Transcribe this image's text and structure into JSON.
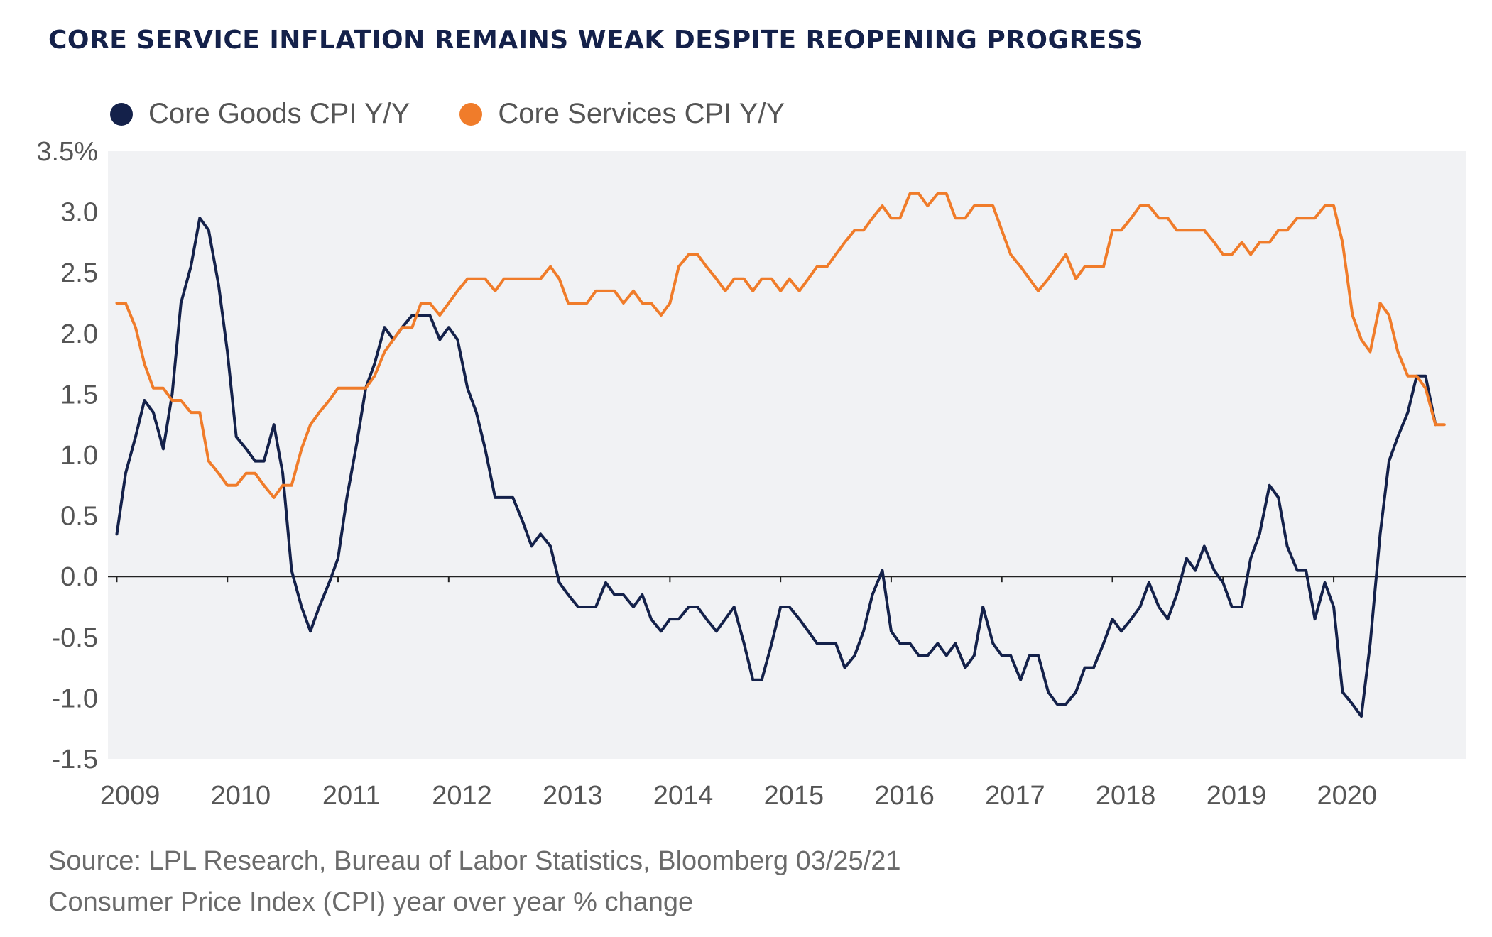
{
  "title": "CORE SERVICE INFLATION REMAINS WEAK DESPITE REOPENING PROGRESS",
  "footer": {
    "source": "Source: LPL Research, Bureau of Labor Statistics, Bloomberg 03/25/21",
    "note": "Consumer Price Index (CPI) year over year % change"
  },
  "colors": {
    "goods": "#14214a",
    "services": "#f07c2a",
    "plot_bg": "#f1f2f4",
    "zero_line": "#222222"
  },
  "chart_data": {
    "type": "line",
    "title": "CORE SERVICE INFLATION REMAINS WEAK DESPITE REOPENING PROGRESS",
    "xlabel": "",
    "ylabel": "",
    "ylim": [
      -1.5,
      3.5
    ],
    "y_ticks": [
      "3.5%",
      "3.0",
      "2.5",
      "2.0",
      "1.5",
      "1.0",
      "0.5",
      "0.0",
      "-0.5",
      "-1.0",
      "-1.5"
    ],
    "y_tick_values": [
      3.5,
      3.0,
      2.5,
      2.0,
      1.5,
      1.0,
      0.5,
      0.0,
      -0.5,
      -1.0,
      -1.5
    ],
    "x_tick_labels": [
      "2009",
      "2010",
      "2011",
      "2012",
      "2013",
      "2014",
      "2015",
      "2016",
      "2017",
      "2018",
      "2019",
      "2020"
    ],
    "x_tick_values": [
      2009,
      2010,
      2011,
      2012,
      2013,
      2014,
      2015,
      2016,
      2017,
      2018,
      2019,
      2020
    ],
    "xlim": [
      2008.92,
      2021.2
    ],
    "grid": false,
    "legend_position": "top-left",
    "series": [
      {
        "name": "Core Goods CPI Y/Y",
        "color": "#14214a",
        "points": [
          [
            2009.0,
            0.35
          ],
          [
            2009.08,
            0.85
          ],
          [
            2009.17,
            1.15
          ],
          [
            2009.25,
            1.45
          ],
          [
            2009.33,
            1.35
          ],
          [
            2009.42,
            1.05
          ],
          [
            2009.5,
            1.5
          ],
          [
            2009.58,
            2.25
          ],
          [
            2009.67,
            2.55
          ],
          [
            2009.75,
            2.95
          ],
          [
            2009.83,
            2.85
          ],
          [
            2009.92,
            2.4
          ],
          [
            2010.0,
            1.85
          ],
          [
            2010.08,
            1.15
          ],
          [
            2010.17,
            1.05
          ],
          [
            2010.25,
            0.95
          ],
          [
            2010.33,
            0.95
          ],
          [
            2010.42,
            1.25
          ],
          [
            2010.5,
            0.85
          ],
          [
            2010.58,
            0.05
          ],
          [
            2010.67,
            -0.25
          ],
          [
            2010.75,
            -0.45
          ],
          [
            2010.83,
            -0.25
          ],
          [
            2010.92,
            -0.05
          ],
          [
            2011.0,
            0.15
          ],
          [
            2011.08,
            0.65
          ],
          [
            2011.17,
            1.1
          ],
          [
            2011.25,
            1.55
          ],
          [
            2011.33,
            1.75
          ],
          [
            2011.42,
            2.05
          ],
          [
            2011.5,
            1.95
          ],
          [
            2011.58,
            2.05
          ],
          [
            2011.67,
            2.15
          ],
          [
            2011.75,
            2.15
          ],
          [
            2011.83,
            2.15
          ],
          [
            2011.92,
            1.95
          ],
          [
            2012.0,
            2.05
          ],
          [
            2012.08,
            1.95
          ],
          [
            2012.17,
            1.55
          ],
          [
            2012.25,
            1.35
          ],
          [
            2012.33,
            1.05
          ],
          [
            2012.42,
            0.65
          ],
          [
            2012.5,
            0.65
          ],
          [
            2012.58,
            0.65
          ],
          [
            2012.67,
            0.45
          ],
          [
            2012.75,
            0.25
          ],
          [
            2012.83,
            0.35
          ],
          [
            2012.92,
            0.25
          ],
          [
            2013.0,
            -0.05
          ],
          [
            2013.08,
            -0.15
          ],
          [
            2013.17,
            -0.25
          ],
          [
            2013.25,
            -0.25
          ],
          [
            2013.33,
            -0.25
          ],
          [
            2013.42,
            -0.05
          ],
          [
            2013.5,
            -0.15
          ],
          [
            2013.58,
            -0.15
          ],
          [
            2013.67,
            -0.25
          ],
          [
            2013.75,
            -0.15
          ],
          [
            2013.83,
            -0.35
          ],
          [
            2013.92,
            -0.45
          ],
          [
            2014.0,
            -0.35
          ],
          [
            2014.08,
            -0.35
          ],
          [
            2014.17,
            -0.25
          ],
          [
            2014.25,
            -0.25
          ],
          [
            2014.33,
            -0.35
          ],
          [
            2014.42,
            -0.45
          ],
          [
            2014.5,
            -0.35
          ],
          [
            2014.58,
            -0.25
          ],
          [
            2014.67,
            -0.55
          ],
          [
            2014.75,
            -0.85
          ],
          [
            2014.83,
            -0.85
          ],
          [
            2014.92,
            -0.55
          ],
          [
            2015.0,
            -0.25
          ],
          [
            2015.08,
            -0.25
          ],
          [
            2015.17,
            -0.35
          ],
          [
            2015.25,
            -0.45
          ],
          [
            2015.33,
            -0.55
          ],
          [
            2015.42,
            -0.55
          ],
          [
            2015.5,
            -0.55
          ],
          [
            2015.58,
            -0.75
          ],
          [
            2015.67,
            -0.65
          ],
          [
            2015.75,
            -0.45
          ],
          [
            2015.83,
            -0.15
          ],
          [
            2015.92,
            0.05
          ],
          [
            2016.0,
            -0.45
          ],
          [
            2016.08,
            -0.55
          ],
          [
            2016.17,
            -0.55
          ],
          [
            2016.25,
            -0.65
          ],
          [
            2016.33,
            -0.65
          ],
          [
            2016.42,
            -0.55
          ],
          [
            2016.5,
            -0.65
          ],
          [
            2016.58,
            -0.55
          ],
          [
            2016.67,
            -0.75
          ],
          [
            2016.75,
            -0.65
          ],
          [
            2016.83,
            -0.25
          ],
          [
            2016.92,
            -0.55
          ],
          [
            2017.0,
            -0.65
          ],
          [
            2017.08,
            -0.65
          ],
          [
            2017.17,
            -0.85
          ],
          [
            2017.25,
            -0.65
          ],
          [
            2017.33,
            -0.65
          ],
          [
            2017.42,
            -0.95
          ],
          [
            2017.5,
            -1.05
          ],
          [
            2017.58,
            -1.05
          ],
          [
            2017.67,
            -0.95
          ],
          [
            2017.75,
            -0.75
          ],
          [
            2017.83,
            -0.75
          ],
          [
            2017.92,
            -0.55
          ],
          [
            2018.0,
            -0.35
          ],
          [
            2018.08,
            -0.45
          ],
          [
            2018.17,
            -0.35
          ],
          [
            2018.25,
            -0.25
          ],
          [
            2018.33,
            -0.05
          ],
          [
            2018.42,
            -0.25
          ],
          [
            2018.5,
            -0.35
          ],
          [
            2018.58,
            -0.15
          ],
          [
            2018.67,
            0.15
          ],
          [
            2018.75,
            0.05
          ],
          [
            2018.83,
            0.25
          ],
          [
            2018.92,
            0.05
          ],
          [
            2019.0,
            -0.05
          ],
          [
            2019.08,
            -0.25
          ],
          [
            2019.17,
            -0.25
          ],
          [
            2019.25,
            0.15
          ],
          [
            2019.33,
            0.35
          ],
          [
            2019.42,
            0.75
          ],
          [
            2019.5,
            0.65
          ],
          [
            2019.58,
            0.25
          ],
          [
            2019.67,
            0.05
          ],
          [
            2019.75,
            0.05
          ],
          [
            2019.83,
            -0.35
          ],
          [
            2019.92,
            -0.05
          ],
          [
            2020.0,
            -0.25
          ],
          [
            2020.08,
            -0.95
          ],
          [
            2020.17,
            -1.05
          ],
          [
            2020.25,
            -1.15
          ],
          [
            2020.33,
            -0.55
          ],
          [
            2020.42,
            0.35
          ],
          [
            2020.5,
            0.95
          ],
          [
            2020.58,
            1.15
          ],
          [
            2020.67,
            1.35
          ],
          [
            2020.75,
            1.65
          ],
          [
            2020.83,
            1.65
          ],
          [
            2020.92,
            1.25
          ]
        ]
      },
      {
        "name": "Core Services CPI Y/Y",
        "color": "#f07c2a",
        "points": [
          [
            2009.0,
            2.25
          ],
          [
            2009.08,
            2.25
          ],
          [
            2009.17,
            2.05
          ],
          [
            2009.25,
            1.75
          ],
          [
            2009.33,
            1.55
          ],
          [
            2009.42,
            1.55
          ],
          [
            2009.5,
            1.45
          ],
          [
            2009.58,
            1.45
          ],
          [
            2009.67,
            1.35
          ],
          [
            2009.75,
            1.35
          ],
          [
            2009.83,
            0.95
          ],
          [
            2009.92,
            0.85
          ],
          [
            2010.0,
            0.75
          ],
          [
            2010.08,
            0.75
          ],
          [
            2010.17,
            0.85
          ],
          [
            2010.25,
            0.85
          ],
          [
            2010.33,
            0.75
          ],
          [
            2010.42,
            0.65
          ],
          [
            2010.5,
            0.75
          ],
          [
            2010.58,
            0.75
          ],
          [
            2010.67,
            1.05
          ],
          [
            2010.75,
            1.25
          ],
          [
            2010.83,
            1.35
          ],
          [
            2010.92,
            1.45
          ],
          [
            2011.0,
            1.55
          ],
          [
            2011.08,
            1.55
          ],
          [
            2011.17,
            1.55
          ],
          [
            2011.25,
            1.55
          ],
          [
            2011.33,
            1.65
          ],
          [
            2011.42,
            1.85
          ],
          [
            2011.5,
            1.95
          ],
          [
            2011.58,
            2.05
          ],
          [
            2011.67,
            2.05
          ],
          [
            2011.75,
            2.25
          ],
          [
            2011.83,
            2.25
          ],
          [
            2011.92,
            2.15
          ],
          [
            2012.0,
            2.25
          ],
          [
            2012.08,
            2.35
          ],
          [
            2012.17,
            2.45
          ],
          [
            2012.25,
            2.45
          ],
          [
            2012.33,
            2.45
          ],
          [
            2012.42,
            2.35
          ],
          [
            2012.5,
            2.45
          ],
          [
            2012.58,
            2.45
          ],
          [
            2012.67,
            2.45
          ],
          [
            2012.75,
            2.45
          ],
          [
            2012.83,
            2.45
          ],
          [
            2012.92,
            2.55
          ],
          [
            2013.0,
            2.45
          ],
          [
            2013.08,
            2.25
          ],
          [
            2013.17,
            2.25
          ],
          [
            2013.25,
            2.25
          ],
          [
            2013.33,
            2.35
          ],
          [
            2013.42,
            2.35
          ],
          [
            2013.5,
            2.35
          ],
          [
            2013.58,
            2.25
          ],
          [
            2013.67,
            2.35
          ],
          [
            2013.75,
            2.25
          ],
          [
            2013.83,
            2.25
          ],
          [
            2013.92,
            2.15
          ],
          [
            2014.0,
            2.25
          ],
          [
            2014.08,
            2.55
          ],
          [
            2014.17,
            2.65
          ],
          [
            2014.25,
            2.65
          ],
          [
            2014.33,
            2.55
          ],
          [
            2014.42,
            2.45
          ],
          [
            2014.5,
            2.35
          ],
          [
            2014.58,
            2.45
          ],
          [
            2014.67,
            2.45
          ],
          [
            2014.75,
            2.35
          ],
          [
            2014.83,
            2.45
          ],
          [
            2014.92,
            2.45
          ],
          [
            2015.0,
            2.35
          ],
          [
            2015.08,
            2.45
          ],
          [
            2015.17,
            2.35
          ],
          [
            2015.25,
            2.45
          ],
          [
            2015.33,
            2.55
          ],
          [
            2015.42,
            2.55
          ],
          [
            2015.5,
            2.65
          ],
          [
            2015.58,
            2.75
          ],
          [
            2015.67,
            2.85
          ],
          [
            2015.75,
            2.85
          ],
          [
            2015.83,
            2.95
          ],
          [
            2015.92,
            3.05
          ],
          [
            2016.0,
            2.95
          ],
          [
            2016.08,
            2.95
          ],
          [
            2016.17,
            3.15
          ],
          [
            2016.25,
            3.15
          ],
          [
            2016.33,
            3.05
          ],
          [
            2016.42,
            3.15
          ],
          [
            2016.5,
            3.15
          ],
          [
            2016.58,
            2.95
          ],
          [
            2016.67,
            2.95
          ],
          [
            2016.75,
            3.05
          ],
          [
            2016.83,
            3.05
          ],
          [
            2016.92,
            3.05
          ],
          [
            2017.0,
            2.85
          ],
          [
            2017.08,
            2.65
          ],
          [
            2017.17,
            2.55
          ],
          [
            2017.25,
            2.45
          ],
          [
            2017.33,
            2.35
          ],
          [
            2017.42,
            2.45
          ],
          [
            2017.5,
            2.55
          ],
          [
            2017.58,
            2.65
          ],
          [
            2017.67,
            2.45
          ],
          [
            2017.75,
            2.55
          ],
          [
            2017.83,
            2.55
          ],
          [
            2017.92,
            2.55
          ],
          [
            2018.0,
            2.85
          ],
          [
            2018.08,
            2.85
          ],
          [
            2018.17,
            2.95
          ],
          [
            2018.25,
            3.05
          ],
          [
            2018.33,
            3.05
          ],
          [
            2018.42,
            2.95
          ],
          [
            2018.5,
            2.95
          ],
          [
            2018.58,
            2.85
          ],
          [
            2018.67,
            2.85
          ],
          [
            2018.75,
            2.85
          ],
          [
            2018.83,
            2.85
          ],
          [
            2018.92,
            2.75
          ],
          [
            2019.0,
            2.65
          ],
          [
            2019.08,
            2.65
          ],
          [
            2019.17,
            2.75
          ],
          [
            2019.25,
            2.65
          ],
          [
            2019.33,
            2.75
          ],
          [
            2019.42,
            2.75
          ],
          [
            2019.5,
            2.85
          ],
          [
            2019.58,
            2.85
          ],
          [
            2019.67,
            2.95
          ],
          [
            2019.75,
            2.95
          ],
          [
            2019.83,
            2.95
          ],
          [
            2019.92,
            3.05
          ],
          [
            2020.0,
            3.05
          ],
          [
            2020.08,
            2.75
          ],
          [
            2020.17,
            2.15
          ],
          [
            2020.25,
            1.95
          ],
          [
            2020.33,
            1.85
          ],
          [
            2020.42,
            2.25
          ],
          [
            2020.5,
            2.15
          ],
          [
            2020.58,
            1.85
          ],
          [
            2020.67,
            1.65
          ],
          [
            2020.75,
            1.65
          ],
          [
            2020.83,
            1.55
          ],
          [
            2020.92,
            1.25
          ],
          [
            2021.0,
            1.25
          ]
        ]
      }
    ]
  }
}
